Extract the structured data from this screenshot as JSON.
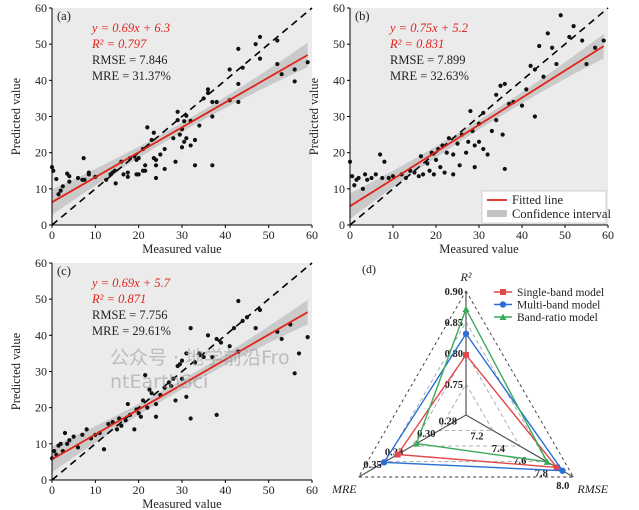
{
  "chart_data": [
    {
      "type": "scatter",
      "panel_label": "(a)",
      "xlabel": "Measured value",
      "ylabel": "Predicted value",
      "xlim": [
        0,
        60
      ],
      "ylim": [
        0,
        60
      ],
      "xticks": [
        "0",
        "10",
        "20",
        "30",
        "40",
        "50",
        "60"
      ],
      "yticks": [
        "0",
        "10",
        "20",
        "30",
        "40",
        "50",
        "60"
      ],
      "fit": {
        "slope": 0.69,
        "intercept": 6.3
      },
      "annotations": {
        "equation": "y = 0.69x + 6.3",
        "r2_label": "R² = 0.797",
        "rmse_label": "RMSE = 7.846",
        "mre_label": "MRE = 31.37%"
      },
      "points": [
        [
          0,
          16
        ],
        [
          0.3,
          15
        ],
        [
          1,
          12.7
        ],
        [
          1.5,
          8.5
        ],
        [
          2,
          9.5
        ],
        [
          2.5,
          10.7
        ],
        [
          3.5,
          14.2
        ],
        [
          4,
          13.5
        ],
        [
          4,
          12
        ],
        [
          6,
          13
        ],
        [
          7,
          12.5
        ],
        [
          7.3,
          18.5
        ],
        [
          7.5,
          12.5
        ],
        [
          8.5,
          14
        ],
        [
          8.5,
          14.5
        ],
        [
          10,
          13.3
        ],
        [
          12.5,
          12.5
        ],
        [
          13.5,
          14
        ],
        [
          14,
          14.5
        ],
        [
          14.5,
          15
        ],
        [
          14.7,
          11.5
        ],
        [
          16,
          17.5
        ],
        [
          16.5,
          14
        ],
        [
          17.5,
          14.5
        ],
        [
          17.5,
          13.3
        ],
        [
          18,
          18.5
        ],
        [
          19,
          19
        ],
        [
          19.5,
          14
        ],
        [
          19.5,
          18
        ],
        [
          20,
          18.5
        ],
        [
          20,
          14
        ],
        [
          21,
          15
        ],
        [
          21,
          21
        ],
        [
          21.5,
          15
        ],
        [
          21.5,
          16.5
        ],
        [
          22,
          27
        ],
        [
          23,
          23.5
        ],
        [
          23.5,
          25.5
        ],
        [
          23.5,
          18.5
        ],
        [
          24,
          18
        ],
        [
          24,
          16.5
        ],
        [
          24,
          13
        ],
        [
          25,
          19.5
        ],
        [
          26,
          21
        ],
        [
          26,
          15.5
        ],
        [
          28,
          24
        ],
        [
          28.5,
          17.5
        ],
        [
          29,
          29
        ],
        [
          29,
          31.3
        ],
        [
          29.5,
          25
        ],
        [
          30,
          26.5
        ],
        [
          30,
          21.5
        ],
        [
          30.5,
          23
        ],
        [
          30.5,
          28.7
        ],
        [
          31,
          24
        ],
        [
          31,
          30.2
        ],
        [
          32,
          22
        ],
        [
          32,
          28.8
        ],
        [
          33,
          23.5
        ],
        [
          33,
          16.5
        ],
        [
          34,
          27.5
        ],
        [
          35,
          35
        ],
        [
          36,
          36.5
        ],
        [
          36,
          37.5
        ],
        [
          37,
          34
        ],
        [
          37,
          30
        ],
        [
          37,
          16.5
        ],
        [
          38,
          34
        ],
        [
          41,
          34.5
        ],
        [
          41,
          43
        ],
        [
          43,
          48.7
        ],
        [
          43,
          39
        ],
        [
          43,
          34
        ],
        [
          44,
          43.5
        ],
        [
          47,
          50
        ],
        [
          48,
          52
        ],
        [
          48,
          46
        ],
        [
          52,
          51
        ],
        [
          52,
          44.5
        ],
        [
          53,
          41.7
        ],
        [
          56,
          43
        ],
        [
          56,
          39.7
        ],
        [
          59,
          45
        ]
      ]
    },
    {
      "type": "scatter",
      "panel_label": "(b)",
      "xlabel": "Measured value",
      "ylabel": "Predicted value",
      "xlim": [
        0,
        60
      ],
      "ylim": [
        0,
        60
      ],
      "xticks": [
        "0",
        "10",
        "20",
        "30",
        "40",
        "50",
        "60"
      ],
      "yticks": [
        "0",
        "10",
        "20",
        "30",
        "40",
        "50",
        "60"
      ],
      "fit": {
        "slope": 0.75,
        "intercept": 5.2
      },
      "annotations": {
        "equation": "y = 0.75x + 5.2",
        "r2_label": "R² = 0.831",
        "rmse_label": "RMSE = 7.899",
        "mre_label": "MRE = 32.63%"
      },
      "legend": {
        "position": "bottom-right",
        "fitted_line": "Fitted line",
        "confidence_interval": "Confidence interval"
      },
      "points": [
        [
          0,
          17.5
        ],
        [
          0.5,
          13.5
        ],
        [
          1,
          11
        ],
        [
          1.5,
          12.5
        ],
        [
          2,
          13
        ],
        [
          3,
          10
        ],
        [
          3.5,
          14
        ],
        [
          4,
          12.5
        ],
        [
          5,
          13
        ],
        [
          6,
          14
        ],
        [
          7,
          19.5
        ],
        [
          7.5,
          13
        ],
        [
          8,
          17.5
        ],
        [
          9,
          13
        ],
        [
          10,
          13.5
        ],
        [
          12,
          14
        ],
        [
          13,
          13
        ],
        [
          14,
          15
        ],
        [
          15,
          14.5
        ],
        [
          16,
          13.5
        ],
        [
          16.5,
          19
        ],
        [
          17,
          14
        ],
        [
          18,
          17
        ],
        [
          18.5,
          15
        ],
        [
          19,
          20
        ],
        [
          19.5,
          14
        ],
        [
          20,
          18
        ],
        [
          20.5,
          21
        ],
        [
          21,
          16
        ],
        [
          21.5,
          22
        ],
        [
          22,
          14.5
        ],
        [
          22.5,
          20
        ],
        [
          23,
          24
        ],
        [
          24,
          19.5
        ],
        [
          24,
          14
        ],
        [
          25,
          22.5
        ],
        [
          25.5,
          16.5
        ],
        [
          26,
          25
        ],
        [
          27,
          20
        ],
        [
          27.5,
          23
        ],
        [
          28,
          31.5
        ],
        [
          28.5,
          26
        ],
        [
          29,
          22
        ],
        [
          29,
          16
        ],
        [
          30,
          28
        ],
        [
          30,
          23
        ],
        [
          31,
          31
        ],
        [
          31,
          21
        ],
        [
          32,
          19.5
        ],
        [
          33,
          26
        ],
        [
          34,
          36
        ],
        [
          34,
          29
        ],
        [
          35,
          38.5
        ],
        [
          35.5,
          25
        ],
        [
          36,
          39
        ],
        [
          36,
          15.5
        ],
        [
          37,
          33.5
        ],
        [
          38,
          34
        ],
        [
          40,
          33
        ],
        [
          41,
          37.5
        ],
        [
          42,
          44
        ],
        [
          43,
          43
        ],
        [
          43,
          30
        ],
        [
          44,
          49.5
        ],
        [
          45,
          41
        ],
        [
          46,
          53
        ],
        [
          47,
          49
        ],
        [
          48,
          44.5
        ],
        [
          49,
          58
        ],
        [
          51,
          52
        ],
        [
          52,
          55
        ],
        [
          54,
          51
        ],
        [
          55,
          44.5
        ],
        [
          57,
          49
        ],
        [
          59,
          51
        ]
      ]
    },
    {
      "type": "scatter",
      "panel_label": "(c)",
      "xlabel": "Measured value",
      "ylabel": "Predicted value",
      "xlim": [
        0,
        60
      ],
      "ylim": [
        0,
        60
      ],
      "xticks": [
        "0",
        "10",
        "20",
        "30",
        "40",
        "50",
        "60"
      ],
      "yticks": [
        "0",
        "10",
        "20",
        "30",
        "40",
        "50",
        "60"
      ],
      "fit": {
        "slope": 0.69,
        "intercept": 5.7
      },
      "annotations": {
        "equation": "y = 0.69x + 5.7",
        "r2_label": "R² = 0.871",
        "rmse_label": "RMSE = 7.756",
        "mre_label": "MRE = 29.61%"
      },
      "points": [
        [
          0,
          6
        ],
        [
          0.5,
          8
        ],
        [
          1,
          7
        ],
        [
          1.5,
          9.5
        ],
        [
          2,
          10
        ],
        [
          2.5,
          8
        ],
        [
          3,
          13
        ],
        [
          3.5,
          10
        ],
        [
          4,
          11
        ],
        [
          5,
          12
        ],
        [
          6,
          9
        ],
        [
          7,
          12.5
        ],
        [
          8,
          14
        ],
        [
          9,
          11.5
        ],
        [
          10,
          12.5
        ],
        [
          11,
          13
        ],
        [
          12,
          8.5
        ],
        [
          13,
          15.5
        ],
        [
          14,
          16
        ],
        [
          15,
          14
        ],
        [
          15.5,
          17
        ],
        [
          16,
          15
        ],
        [
          17,
          16.5
        ],
        [
          17.5,
          21
        ],
        [
          18,
          18
        ],
        [
          19,
          14
        ],
        [
          19.5,
          19.5
        ],
        [
          20,
          18.5
        ],
        [
          20.5,
          17.5
        ],
        [
          21,
          22
        ],
        [
          21.5,
          29
        ],
        [
          22,
          20
        ],
        [
          22.5,
          25
        ],
        [
          23,
          24
        ],
        [
          24,
          21
        ],
        [
          24,
          17.5
        ],
        [
          25,
          23.5
        ],
        [
          26,
          25.5
        ],
        [
          27,
          27
        ],
        [
          27.5,
          26
        ],
        [
          28,
          28
        ],
        [
          28.5,
          22
        ],
        [
          29,
          31.5
        ],
        [
          29.5,
          32
        ],
        [
          30,
          33
        ],
        [
          30,
          28
        ],
        [
          31,
          35
        ],
        [
          31,
          23
        ],
        [
          32,
          42
        ],
        [
          32,
          17
        ],
        [
          33,
          32.5
        ],
        [
          34,
          35
        ],
        [
          35,
          34
        ],
        [
          36,
          40
        ],
        [
          37,
          34
        ],
        [
          38,
          39
        ],
        [
          38,
          18
        ],
        [
          39,
          38
        ],
        [
          41,
          37
        ],
        [
          42,
          42
        ],
        [
          43,
          49.5
        ],
        [
          43,
          35.5
        ],
        [
          44,
          44
        ],
        [
          45,
          45
        ],
        [
          47,
          42
        ],
        [
          48,
          47
        ],
        [
          52,
          41
        ],
        [
          53,
          39
        ],
        [
          55,
          43
        ],
        [
          56,
          29.5
        ],
        [
          57,
          35
        ],
        [
          59,
          39.5
        ]
      ]
    },
    {
      "type": "radar",
      "panel_label": "(d)",
      "axes": [
        {
          "name": "R²",
          "ticks": [
            "0.75",
            "0.80",
            "0.85",
            "0.90"
          ],
          "range": [
            0.7,
            0.9
          ]
        },
        {
          "name": "RMSE",
          "ticks": [
            "7.2",
            "7.4",
            "7.6",
            "7.8",
            "8.0"
          ],
          "range": [
            7.0,
            8.0
          ]
        },
        {
          "name": "MRE",
          "ticks": [
            "0.28",
            "0.30",
            "0.33",
            "0.35"
          ],
          "range": [
            0.25,
            0.35
          ]
        }
      ],
      "legend": {
        "position": "top-right"
      },
      "series": [
        {
          "name": "Single-band model",
          "color": "#e2474a",
          "marker": "square",
          "values": [
            0.797,
            7.846,
            0.3137
          ]
        },
        {
          "name": "Multi-band model",
          "color": "#2a6fd6",
          "marker": "circle",
          "values": [
            0.831,
            7.899,
            0.3263
          ]
        },
        {
          "name": "Band-ratio model",
          "color": "#3aaa5c",
          "marker": "triangle",
          "values": [
            0.871,
            7.756,
            0.2961
          ]
        }
      ]
    }
  ],
  "watermark": "公众号 · 地学前沿FrontEarthSci",
  "colors": {
    "fit_line": "#e2231a",
    "confidence_band": "#c4c4c4",
    "plot_bg": "#ebebeb",
    "point": "#111111"
  }
}
